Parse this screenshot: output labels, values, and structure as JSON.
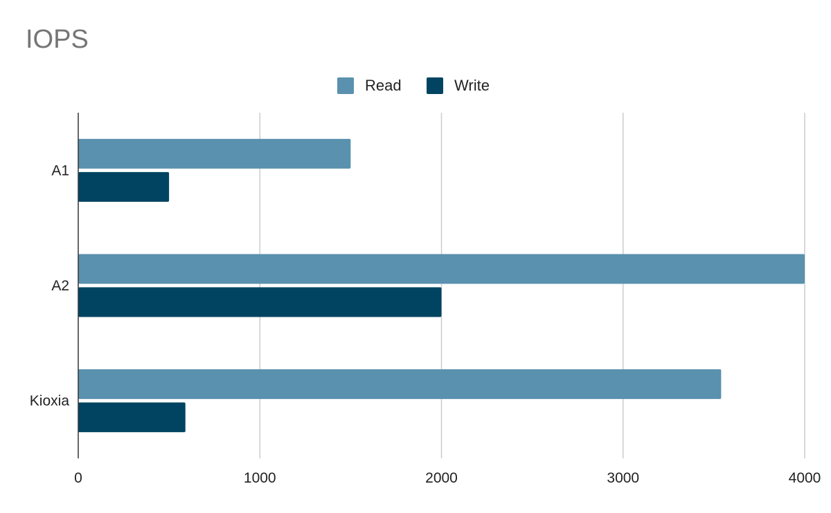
{
  "chart_data": {
    "type": "bar",
    "orientation": "horizontal",
    "title": "IOPS",
    "categories": [
      "A1",
      "A2",
      "Kioxia"
    ],
    "series": [
      {
        "name": "Read",
        "color": "#5991ae",
        "values": [
          1500,
          4000,
          3540
        ]
      },
      {
        "name": "Write",
        "color": "#004461",
        "values": [
          500,
          2000,
          590
        ]
      }
    ],
    "xlim": [
      0,
      4000
    ],
    "xticks": [
      0,
      1000,
      2000,
      3000,
      4000
    ],
    "grid": true,
    "legend_position": "top"
  }
}
